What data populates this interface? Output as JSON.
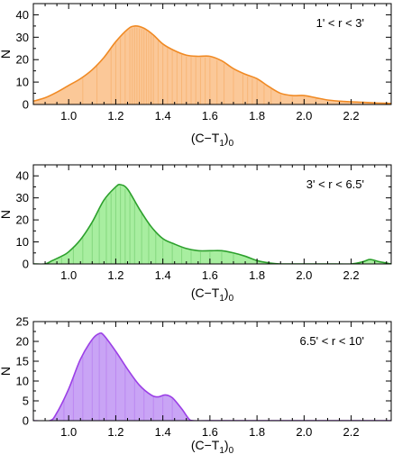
{
  "chart_data": [
    {
      "type": "area",
      "annotation": "1' < r <  3'",
      "xlabel": "(C−T",
      "xlabel_sub1": "1",
      "xlabel_close": ")",
      "xlabel_sub2": "0",
      "ylabel": "N",
      "xlim": [
        0.85,
        2.37
      ],
      "ylim": [
        0,
        45
      ],
      "xticks": [
        1.0,
        1.2,
        1.4,
        1.6,
        1.8,
        2.0,
        2.2
      ],
      "xtick_labels": [
        "1.0",
        "1.2",
        "1.4",
        "1.6",
        "1.8",
        "2.0",
        "2.2"
      ],
      "yticks": [
        0,
        10,
        20,
        30,
        40
      ],
      "ytick_labels": [
        "0",
        "10",
        "20",
        "30",
        "40"
      ],
      "line_color": "#f08a24",
      "fill_color": "#fbc898",
      "x": [
        0.85,
        0.9,
        0.95,
        1.0,
        1.05,
        1.1,
        1.15,
        1.2,
        1.25,
        1.28,
        1.32,
        1.36,
        1.4,
        1.45,
        1.5,
        1.55,
        1.6,
        1.65,
        1.7,
        1.75,
        1.8,
        1.85,
        1.9,
        1.95,
        2.0,
        2.05,
        2.1,
        2.15,
        2.2,
        2.25,
        2.3,
        2.37
      ],
      "y": [
        1.5,
        3,
        5.5,
        8.5,
        11.5,
        15.5,
        21,
        28,
        33.5,
        35,
        34,
        31,
        27,
        24,
        22,
        21.5,
        21.5,
        19.5,
        16,
        13.5,
        11.5,
        8,
        5,
        4,
        4,
        3,
        2,
        1.5,
        1.2,
        1,
        0.7,
        0.5
      ],
      "bars": [
        1.06,
        1.12,
        1.18,
        1.2,
        1.22,
        1.24,
        1.26,
        1.27,
        1.28,
        1.29,
        1.3,
        1.31,
        1.32,
        1.33,
        1.34,
        1.35,
        1.36,
        1.38,
        1.4,
        1.42,
        1.44,
        1.46,
        1.48,
        1.5,
        1.52,
        1.54,
        1.56,
        1.58,
        1.6,
        1.63,
        1.66,
        1.7,
        1.74,
        1.76,
        1.78,
        1.8,
        1.83,
        1.86,
        1.9,
        1.95,
        2.0,
        2.05
      ]
    },
    {
      "type": "area",
      "annotation": "3' < r <  6.5'",
      "xlabel": "(C−T",
      "xlabel_sub1": "1",
      "xlabel_close": ")",
      "xlabel_sub2": "0",
      "ylabel": "N",
      "xlim": [
        0.85,
        2.37
      ],
      "ylim": [
        0,
        45
      ],
      "xticks": [
        1.0,
        1.2,
        1.4,
        1.6,
        1.8,
        2.0,
        2.2
      ],
      "xtick_labels": [
        "1.0",
        "1.2",
        "1.4",
        "1.6",
        "1.8",
        "2.0",
        "2.2"
      ],
      "yticks": [
        0,
        10,
        20,
        30,
        40
      ],
      "ytick_labels": [
        "0",
        "10",
        "20",
        "30",
        "40"
      ],
      "line_color": "#2ca02c",
      "fill_color": "#a8eea0",
      "x": [
        0.85,
        0.9,
        0.93,
        0.97,
        1.0,
        1.05,
        1.1,
        1.15,
        1.2,
        1.22,
        1.25,
        1.3,
        1.35,
        1.4,
        1.45,
        1.5,
        1.55,
        1.6,
        1.65,
        1.7,
        1.75,
        1.8,
        1.85,
        1.9,
        2.0,
        2.1,
        2.2,
        2.25,
        2.28,
        2.32,
        2.37
      ],
      "y": [
        0,
        0,
        1.5,
        3.5,
        5.5,
        11,
        19,
        29,
        35,
        36,
        34,
        25,
        17,
        11.5,
        9,
        7,
        6,
        6,
        6,
        5,
        3.5,
        1.5,
        0.5,
        0,
        0,
        0,
        0,
        1,
        2,
        1,
        0
      ],
      "bars": [
        0.97,
        1.02,
        1.06,
        1.1,
        1.13,
        1.16,
        1.18,
        1.2,
        1.22,
        1.24,
        1.26,
        1.28,
        1.31,
        1.34,
        1.37,
        1.4,
        1.44,
        1.48,
        1.52,
        1.56,
        1.6,
        1.65,
        1.7
      ]
    },
    {
      "type": "area",
      "annotation": "6.5' < r <  10'",
      "xlabel": "(C−T",
      "xlabel_sub1": "1",
      "xlabel_close": ")",
      "xlabel_sub2": "0",
      "ylabel": "N",
      "xlim": [
        0.85,
        2.37
      ],
      "ylim": [
        0,
        25
      ],
      "xticks": [
        1.0,
        1.2,
        1.4,
        1.6,
        1.8,
        2.0,
        2.2
      ],
      "xtick_labels": [
        "1.0",
        "1.2",
        "1.4",
        "1.6",
        "1.8",
        "2.0",
        "2.2"
      ],
      "yticks": [
        0,
        5,
        10,
        15,
        20,
        25
      ],
      "ytick_labels": [
        "0",
        "5",
        "10",
        "15",
        "20",
        "25"
      ],
      "line_color": "#9b3fe6",
      "fill_color": "#c9a4f5",
      "x": [
        0.85,
        0.92,
        0.95,
        1.0,
        1.05,
        1.1,
        1.13,
        1.15,
        1.2,
        1.25,
        1.3,
        1.35,
        1.38,
        1.41,
        1.44,
        1.48,
        1.51,
        1.53,
        1.6,
        1.8,
        2.0,
        2.2,
        2.37
      ],
      "y": [
        0,
        0,
        2,
        8,
        15.5,
        20.5,
        22,
        21.5,
        17.5,
        13,
        9,
        6.5,
        6,
        6.5,
        5.8,
        3,
        0.5,
        0,
        0,
        0,
        0,
        0,
        0
      ],
      "bars": [
        0.98,
        1.02,
        1.06,
        1.1,
        1.13,
        1.16,
        1.2,
        1.24,
        1.28,
        1.32,
        1.36,
        1.4,
        1.44
      ]
    }
  ]
}
